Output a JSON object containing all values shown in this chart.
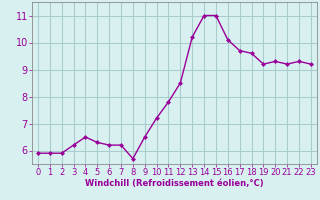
{
  "x": [
    0,
    1,
    2,
    3,
    4,
    5,
    6,
    7,
    8,
    9,
    10,
    11,
    12,
    13,
    14,
    15,
    16,
    17,
    18,
    19,
    20,
    21,
    22,
    23
  ],
  "y": [
    5.9,
    5.9,
    5.9,
    6.2,
    6.5,
    6.3,
    6.2,
    6.2,
    5.7,
    6.5,
    7.2,
    7.8,
    8.5,
    10.2,
    11.0,
    11.0,
    10.1,
    9.7,
    9.6,
    9.2,
    9.3,
    9.2,
    9.3,
    9.2
  ],
  "line_color": "#990099",
  "marker": "D",
  "marker_size": 2.0,
  "bg_color": "#d8f0f0",
  "grid_color": "#aacccc",
  "xlabel": "Windchill (Refroidissement éolien,°C)",
  "xlabel_color": "#990099",
  "tick_color": "#990099",
  "ylim": [
    5.5,
    11.5
  ],
  "xlim": [
    -0.5,
    23.5
  ],
  "yticks": [
    6,
    7,
    8,
    9,
    10,
    11
  ],
  "xticks": [
    0,
    1,
    2,
    3,
    4,
    5,
    6,
    7,
    8,
    9,
    10,
    11,
    12,
    13,
    14,
    15,
    16,
    17,
    18,
    19,
    20,
    21,
    22,
    23
  ],
  "line_width": 1.0,
  "marker_color": "#990099",
  "tick_fontsize": 6.0,
  "xlabel_fontsize": 6.0,
  "spine_color": "#888888"
}
